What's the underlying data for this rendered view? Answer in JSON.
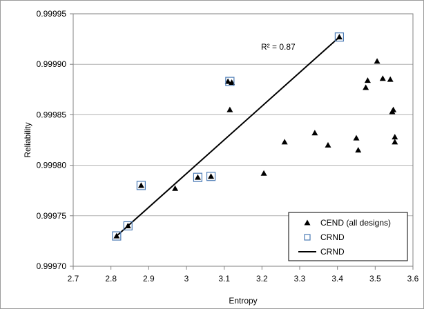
{
  "chart_data": {
    "type": "scatter",
    "title": "",
    "xlabel": "Entropy",
    "ylabel": "Reliability",
    "xlim": [
      2.7,
      3.6
    ],
    "ylim": [
      0.9997,
      0.99995
    ],
    "x_ticks": [
      "2.7",
      "2.8",
      "2.9",
      "3",
      "3.1",
      "3.2",
      "3.3",
      "3.4",
      "3.5",
      "3.6"
    ],
    "y_ticks": [
      "0.99970",
      "0.99975",
      "0.99980",
      "0.99985",
      "0.99990",
      "0.99995"
    ],
    "grid": "horizontal",
    "legend_position": "bottom-right",
    "series": [
      {
        "name": "CEND (all designs)",
        "marker": "filled-triangle",
        "color": "#000000",
        "points": [
          {
            "x": 2.815,
            "y": 0.99973
          },
          {
            "x": 2.845,
            "y": 0.99974
          },
          {
            "x": 2.88,
            "y": 0.99978
          },
          {
            "x": 2.97,
            "y": 0.999777
          },
          {
            "x": 3.03,
            "y": 0.999788
          },
          {
            "x": 3.065,
            "y": 0.999789
          },
          {
            "x": 3.11,
            "y": 0.999883
          },
          {
            "x": 3.12,
            "y": 0.999882
          },
          {
            "x": 3.115,
            "y": 0.999855
          },
          {
            "x": 3.205,
            "y": 0.999792
          },
          {
            "x": 3.26,
            "y": 0.999823
          },
          {
            "x": 3.34,
            "y": 0.999832
          },
          {
            "x": 3.375,
            "y": 0.99982
          },
          {
            "x": 3.405,
            "y": 0.999927
          },
          {
            "x": 3.45,
            "y": 0.999827
          },
          {
            "x": 3.455,
            "y": 0.999815
          },
          {
            "x": 3.475,
            "y": 0.999877
          },
          {
            "x": 3.48,
            "y": 0.999884
          },
          {
            "x": 3.505,
            "y": 0.999903
          },
          {
            "x": 3.52,
            "y": 0.999886
          },
          {
            "x": 3.54,
            "y": 0.999885
          },
          {
            "x": 3.545,
            "y": 0.999853
          },
          {
            "x": 3.548,
            "y": 0.999855
          },
          {
            "x": 3.552,
            "y": 0.999828
          },
          {
            "x": 3.552,
            "y": 0.999823
          }
        ]
      },
      {
        "name": "CRND",
        "marker": "open-square",
        "color": "#4a7ab5",
        "points": [
          {
            "x": 2.815,
            "y": 0.99973
          },
          {
            "x": 2.845,
            "y": 0.99974
          },
          {
            "x": 2.88,
            "y": 0.99978
          },
          {
            "x": 3.03,
            "y": 0.999788
          },
          {
            "x": 3.065,
            "y": 0.999789
          },
          {
            "x": 3.115,
            "y": 0.999883
          },
          {
            "x": 3.405,
            "y": 0.999927
          }
        ]
      },
      {
        "name": "CRND",
        "type": "line",
        "color": "#000000",
        "points": [
          {
            "x": 2.815,
            "y": 0.99973
          },
          {
            "x": 3.405,
            "y": 0.999927
          }
        ]
      }
    ],
    "annotations": [
      {
        "text": "R² = 0.87",
        "x": 3.0,
        "y": 0.99991
      }
    ]
  }
}
